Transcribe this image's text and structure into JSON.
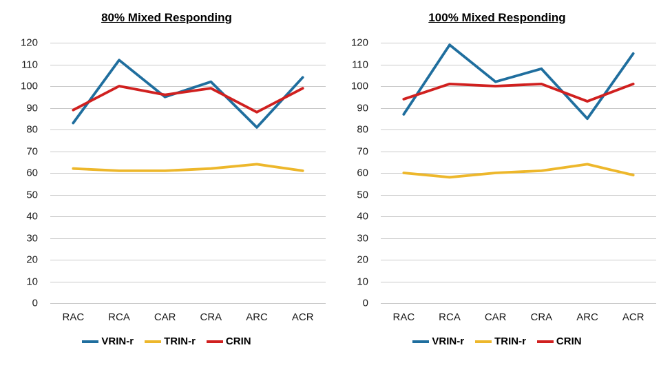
{
  "page": {
    "background": "#ffffff",
    "gridline_color": "#c9c9c9",
    "axis_text_color": "#1a1a1a"
  },
  "chart_data": [
    {
      "type": "line",
      "title": "80% Mixed Responding",
      "categories": [
        "RAC",
        "RCA",
        "CAR",
        "CRA",
        "ARC",
        "ACR"
      ],
      "series": [
        {
          "name": "VRIN-r",
          "color": "#1f6e9e",
          "values": [
            83,
            112,
            95,
            102,
            81,
            104
          ]
        },
        {
          "name": "TRIN-r",
          "color": "#edb72b",
          "values": [
            62,
            61,
            61,
            62,
            64,
            61
          ]
        },
        {
          "name": "CRIN",
          "color": "#d0201f",
          "values": [
            89,
            100,
            96,
            99,
            88,
            99
          ]
        }
      ],
      "ylim": [
        0,
        120
      ],
      "ytick_step": 10,
      "grid": true,
      "legend_position": "bottom"
    },
    {
      "type": "line",
      "title": "100% Mixed Responding",
      "categories": [
        "RAC",
        "RCA",
        "CAR",
        "CRA",
        "ARC",
        "ACR"
      ],
      "series": [
        {
          "name": "VRIN-r",
          "color": "#1f6e9e",
          "values": [
            87,
            119,
            102,
            108,
            85,
            115
          ]
        },
        {
          "name": "TRIN-r",
          "color": "#edb72b",
          "values": [
            60,
            58,
            60,
            61,
            64,
            59
          ]
        },
        {
          "name": "CRIN",
          "color": "#d0201f",
          "values": [
            94,
            101,
            100,
            101,
            93,
            101
          ]
        }
      ],
      "ylim": [
        0,
        120
      ],
      "ytick_step": 10,
      "grid": true,
      "legend_position": "bottom"
    }
  ]
}
